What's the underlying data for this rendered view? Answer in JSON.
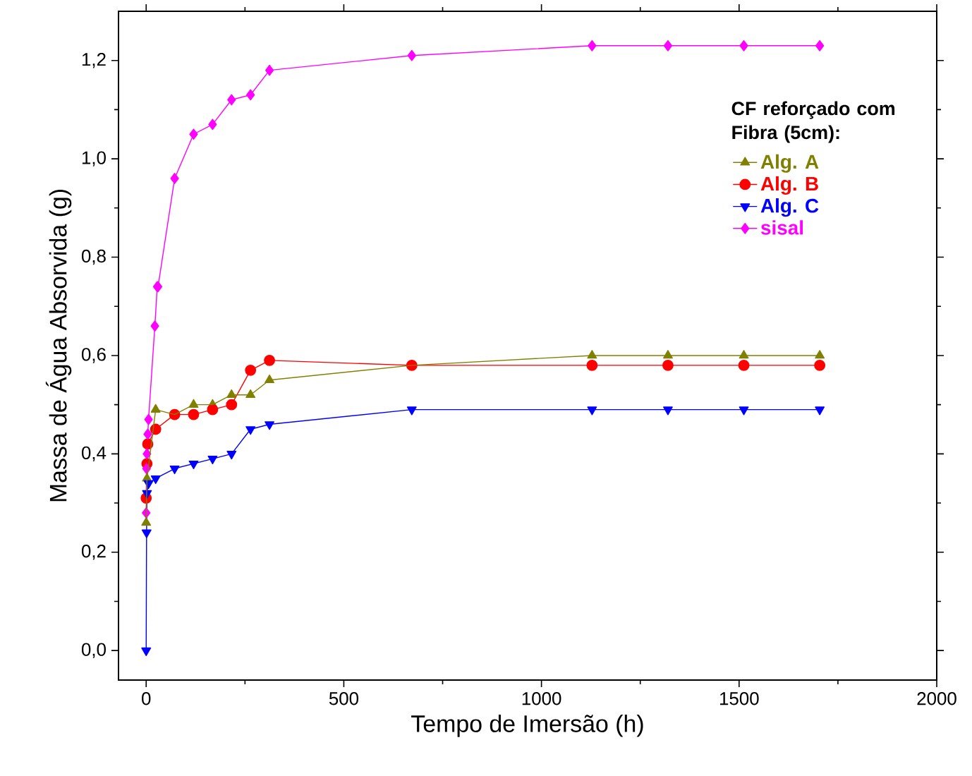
{
  "chart_data": {
    "type": "line",
    "xlabel": "Tempo de Imersão (h)",
    "ylabel": "Massa de Água Absorvida (g)",
    "legend_title": "CF reforçado com Fibra (5cm):",
    "legend": "right",
    "grid": false,
    "xlim": [
      -70,
      2000
    ],
    "ylim": [
      -0.06,
      1.3
    ],
    "xticks": [
      0,
      500,
      1000,
      1500,
      2000
    ],
    "yticks": [
      {
        "value": 0,
        "label": "0,0"
      },
      {
        "value": 0.2,
        "label": "0,2"
      },
      {
        "value": 0.4,
        "label": "0,4"
      },
      {
        "value": 0.6,
        "label": "0,6"
      },
      {
        "value": 0.8,
        "label": "0,8"
      },
      {
        "value": 1.0,
        "label": "1,0"
      },
      {
        "value": 1.2,
        "label": "1,2"
      }
    ],
    "series": [
      {
        "name": "Alg. A",
        "color": "#808000",
        "marker": "triangle",
        "x": [
          0,
          2,
          4,
          6,
          24,
          72,
          120,
          168,
          216,
          264,
          312,
          672,
          1128,
          1320,
          1512,
          1704
        ],
        "values": [
          0.26,
          0.35,
          null,
          null,
          0.49,
          0.48,
          0.5,
          0.5,
          0.52,
          0.52,
          0.55,
          0.58,
          0.6,
          0.6,
          0.6,
          0.6
        ]
      },
      {
        "name": "Alg. B",
        "color": "#ff0000",
        "marker": "circle",
        "x": [
          0,
          2,
          4,
          6,
          24,
          72,
          120,
          168,
          216,
          264,
          312,
          672,
          1128,
          1320,
          1512,
          1704
        ],
        "values": [
          0.31,
          0.38,
          0.42,
          null,
          0.45,
          0.48,
          0.48,
          0.49,
          0.5,
          0.57,
          0.59,
          0.58,
          0.58,
          0.58,
          0.58,
          0.58
        ]
      },
      {
        "name": "Alg. C",
        "color": "#0000ff",
        "marker": "triangle down",
        "x": [
          0,
          1,
          2,
          6,
          24,
          72,
          120,
          168,
          216,
          264,
          312,
          672,
          1128,
          1320,
          1512,
          1704
        ],
        "values": [
          0.0,
          0.24,
          0.32,
          0.34,
          0.35,
          0.37,
          0.38,
          0.39,
          0.4,
          0.45,
          0.46,
          0.49,
          0.49,
          0.49,
          0.49,
          0.49
        ]
      },
      {
        "name": "sisal",
        "color": "#ff00ff",
        "marker": "diamond",
        "x": [
          0,
          1,
          2,
          4,
          6,
          22,
          28,
          30,
          72,
          120,
          168,
          216,
          264,
          312,
          672,
          1128,
          1320,
          1512,
          1704
        ],
        "values": [
          0.28,
          0.37,
          0.4,
          0.44,
          0.47,
          0.66,
          0.74,
          0.74,
          0.96,
          1.05,
          1.07,
          1.12,
          1.13,
          1.18,
          1.21,
          1.23,
          1.23,
          1.23,
          1.23
        ]
      }
    ]
  }
}
